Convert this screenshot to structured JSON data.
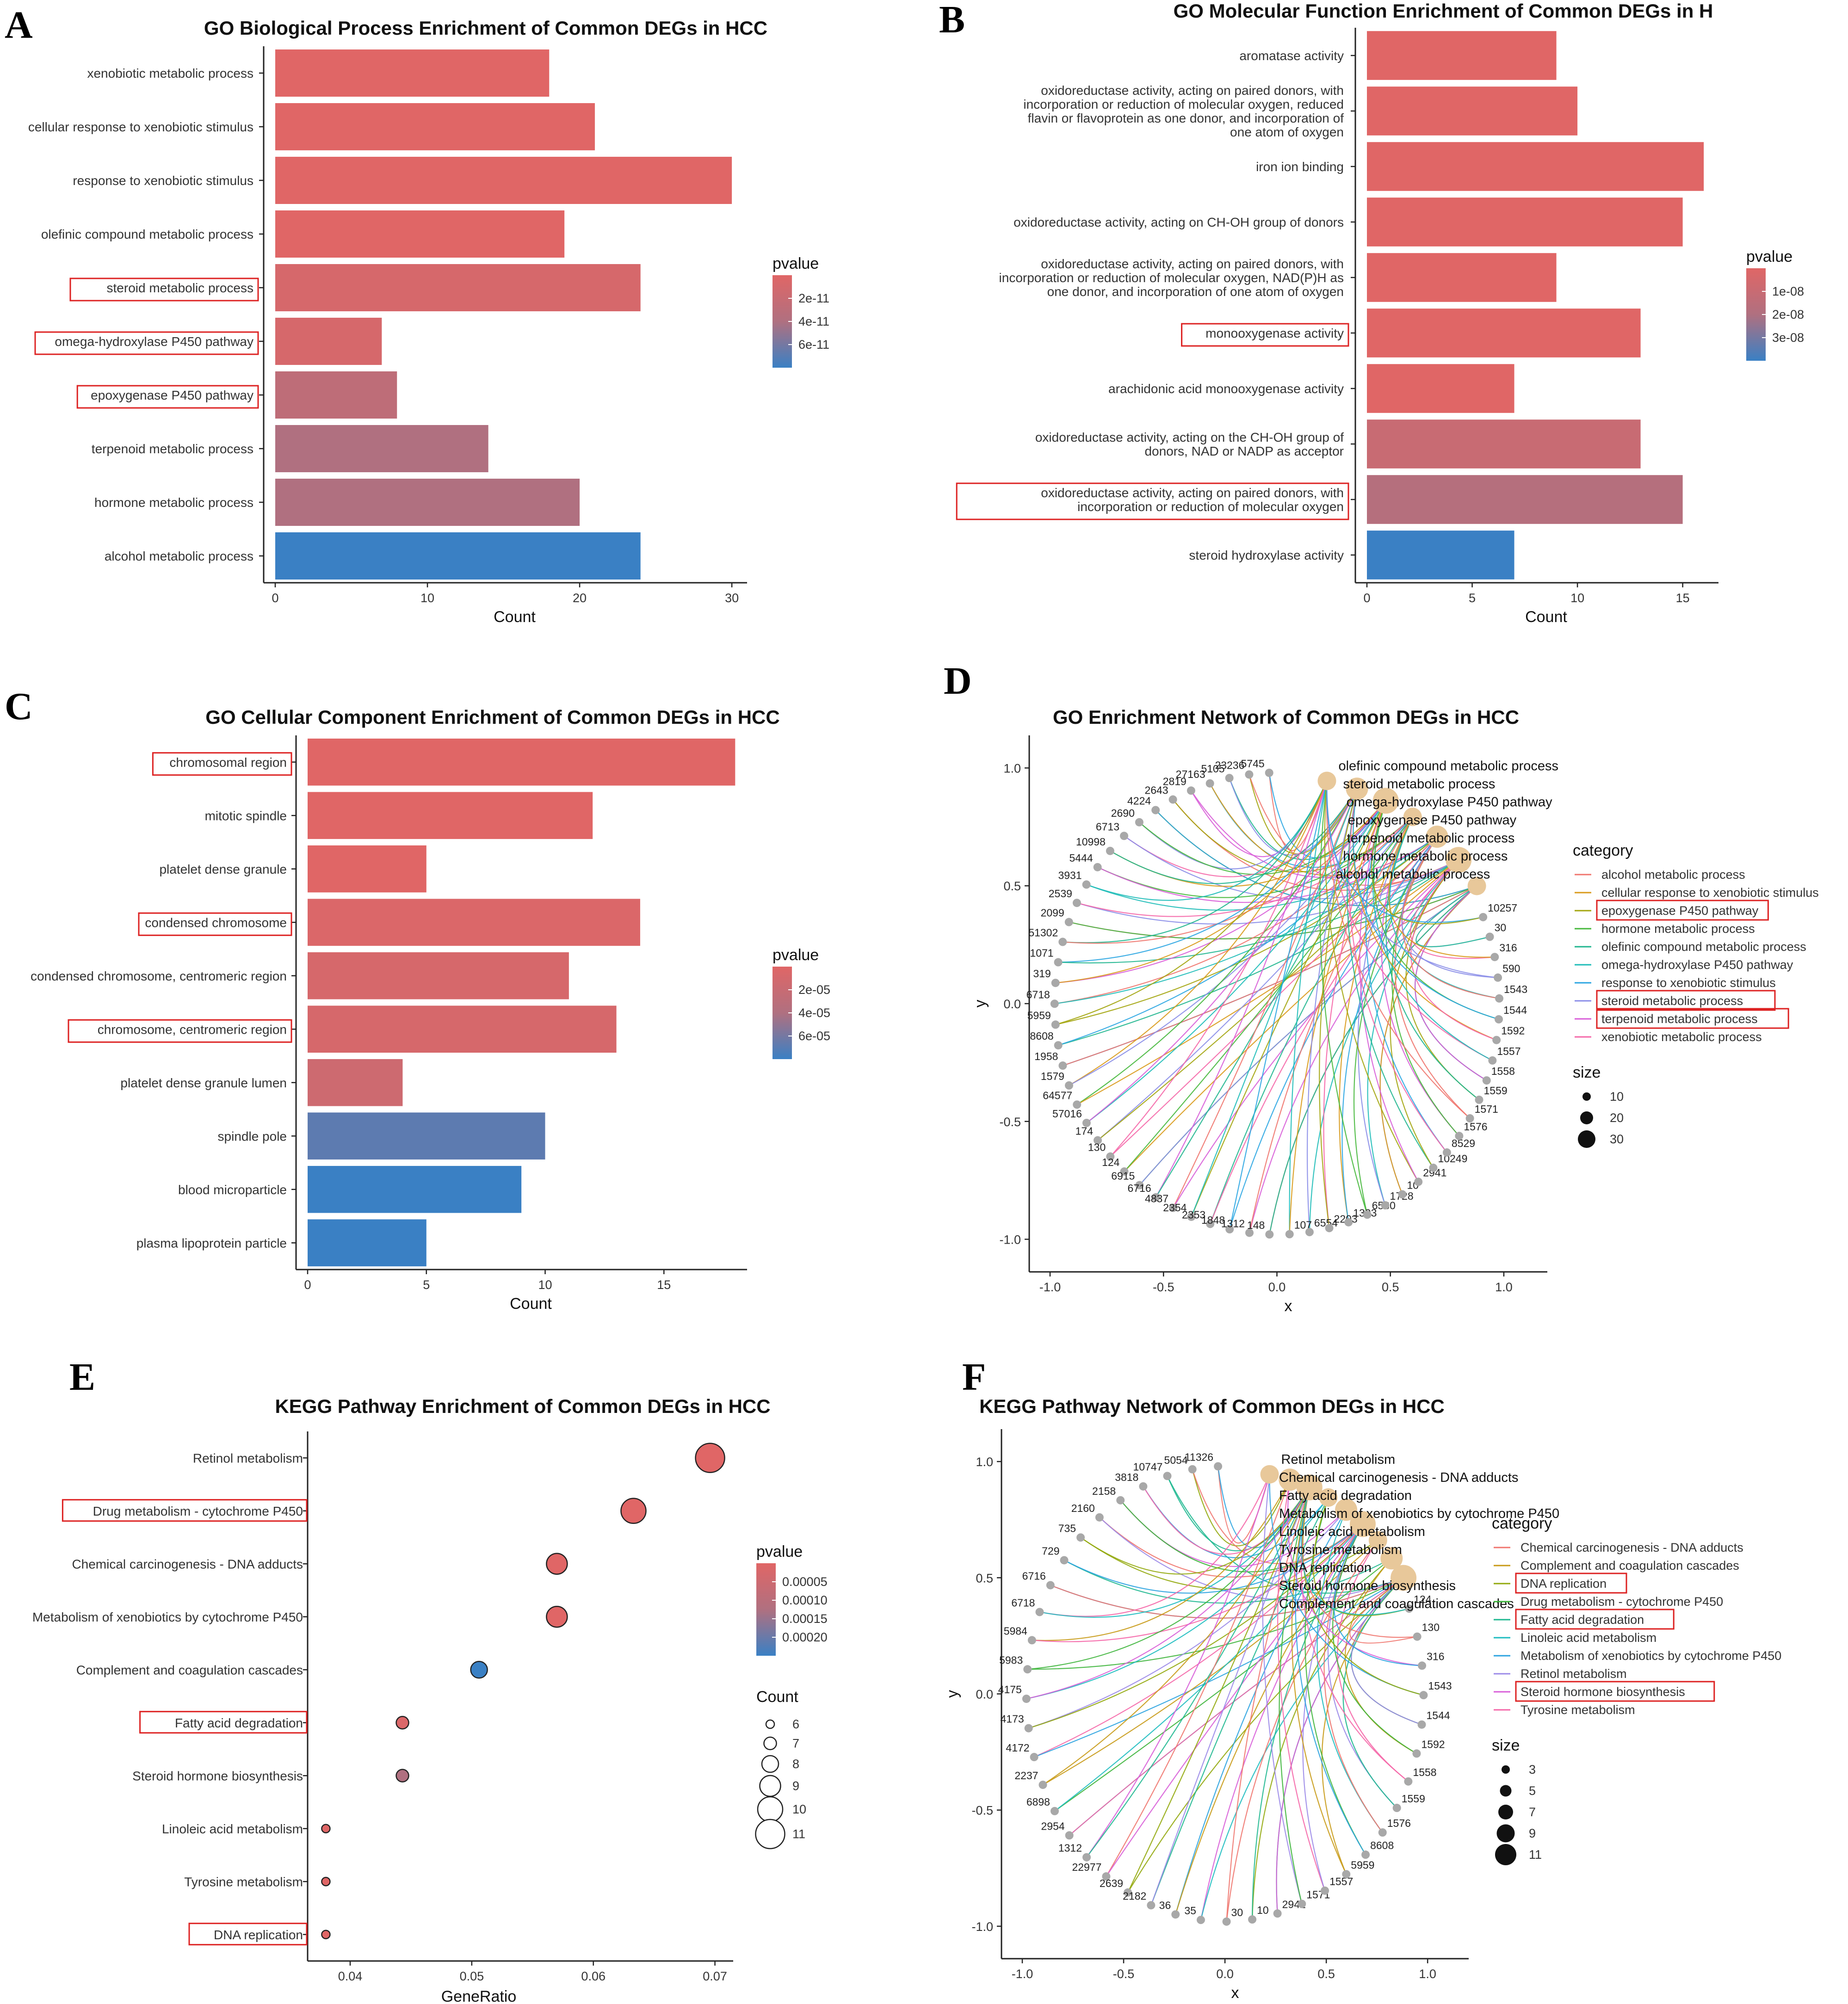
{
  "colors": {
    "red": "#e06666",
    "mid": "#b07080",
    "blue": "#3a80c4",
    "highlight": "#dd2222",
    "node": "#a8a8a8",
    "catNode": "#e8c89a"
  },
  "panels": [
    {
      "id": "A",
      "label": "A",
      "kind": "bar",
      "title": "GO Biological Process Enrichment of Common DEGs in HCC",
      "xlabel": "Count",
      "xticks": [
        0,
        10,
        20,
        30
      ],
      "xlim": [
        0,
        31
      ],
      "categories": [
        "xenobiotic metabolic process",
        "cellular response to xenobiotic stimulus",
        "response to xenobiotic stimulus",
        "olefinic compound metabolic process",
        "steroid metabolic process",
        "omega-hydroxylase P450 pathway",
        "epoxygenase P450 pathway",
        "terpenoid metabolic process",
        "hormone metabolic process",
        "alcohol metabolic process"
      ],
      "values": [
        18,
        21,
        30,
        19,
        24,
        7,
        8,
        14,
        20,
        24
      ],
      "color_t": [
        0.0,
        0.0,
        0.0,
        0.0,
        0.1,
        0.1,
        0.35,
        0.5,
        0.5,
        1.0
      ],
      "highlight": [
        4,
        5,
        6
      ],
      "legend": {
        "title": "pvalue",
        "labels": [
          "2e-11",
          "4e-11",
          "6e-11"
        ]
      }
    },
    {
      "id": "B",
      "label": "B",
      "kind": "bar",
      "title": "GO Molecular Function Enrichment of Common DEGs in H",
      "xlabel": "Count",
      "xticks": [
        0,
        5,
        10,
        15
      ],
      "xlim": [
        0,
        16.7
      ],
      "categories": [
        [
          "aromatase activity"
        ],
        [
          "oxidoreductase activity, acting on paired donors, with",
          "incorporation or reduction of molecular oxygen, reduced",
          "flavin or flavoprotein as one donor, and incorporation of",
          "one atom of oxygen"
        ],
        [
          "iron ion binding"
        ],
        [
          "oxidoreductase activity, acting on CH-OH group of donors"
        ],
        [
          "oxidoreductase activity, acting on paired donors, with",
          "incorporation or reduction of molecular oxygen, NAD(P)H as",
          "one donor, and incorporation of one atom of oxygen"
        ],
        [
          "monooxygenase activity"
        ],
        [
          "arachidonic acid monooxygenase activity"
        ],
        [
          "oxidoreductase activity, acting on the CH-OH group of",
          "donors, NAD or NADP as acceptor"
        ],
        [
          "oxidoreductase activity, acting on paired donors, with",
          "incorporation or reduction of molecular oxygen"
        ],
        [
          "steroid hydroxylase activity"
        ]
      ],
      "values": [
        9,
        10,
        16,
        15,
        9,
        13,
        7,
        13,
        15,
        7
      ],
      "color_t": [
        0.0,
        0.0,
        0.0,
        0.0,
        0.0,
        0.0,
        0.0,
        0.25,
        0.45,
        1.0
      ],
      "highlight": [
        5,
        8
      ],
      "legend": {
        "title": "pvalue",
        "labels": [
          "1e-08",
          "2e-08",
          "3e-08"
        ]
      }
    },
    {
      "id": "C",
      "label": "C",
      "kind": "bar",
      "title": "GO Cellular Component Enrichment of Common DEGs in HCC",
      "xlabel": "Count",
      "xticks": [
        0,
        5,
        10,
        15
      ],
      "xlim": [
        0,
        18.5
      ],
      "categories": [
        "chromosomal region",
        "mitotic spindle",
        "platelet dense granule",
        "condensed chromosome",
        "condensed chromosome, centromeric region",
        "chromosome, centromeric region",
        "platelet dense granule lumen",
        "spindle pole",
        "blood microparticle",
        "plasma lipoprotein particle"
      ],
      "values": [
        18,
        12,
        5,
        14,
        11,
        13,
        4,
        10,
        9,
        5
      ],
      "color_t": [
        0.0,
        0.0,
        0.0,
        0.05,
        0.1,
        0.1,
        0.2,
        0.85,
        1.0,
        1.0
      ],
      "highlight": [
        0,
        3,
        5
      ],
      "legend": {
        "title": "pvalue",
        "labels": [
          "2e-05",
          "4e-05",
          "6e-05"
        ]
      }
    },
    {
      "id": "D",
      "label": "D",
      "kind": "network",
      "title": "GO Enrichment Network of Common DEGs in HCC",
      "xlabel": "x",
      "ylabel": "y",
      "xticks": [
        "-1.0",
        "-0.5",
        "0.0",
        "0.5",
        "1.0"
      ],
      "yticks": [
        "1.0",
        "0.5",
        "0.0",
        "-0.5",
        "-1.0"
      ],
      "category_nodes": [
        "olefinic compound metabolic process",
        "steroid metabolic process",
        "omega-hydroxylase P450 pathway",
        "epoxygenase P450 pathway",
        "terpenoid metabolic process",
        "hormone metabolic process",
        "alcohol metabolic process"
      ],
      "gene_nodes": [
        "5745",
        "23236",
        "5105",
        "27163",
        "2819",
        "2643",
        "4224",
        "2690",
        "6713",
        "10998",
        "5444",
        "3931",
        "2539",
        "2099",
        "51302",
        "1071",
        "319",
        "6718",
        "5959",
        "8608",
        "1958",
        "1579",
        "64577",
        "57016",
        "174",
        "130",
        "124",
        "6915",
        "6716",
        "4837",
        "2354",
        "2353",
        "1848",
        "1312",
        "148",
        "107",
        "6554",
        "2203",
        "1393",
        "6580",
        "1728",
        "10",
        "2941",
        "10249",
        "8529",
        "1576",
        "1571",
        "1559",
        "1558",
        "1557",
        "1592",
        "1544",
        "1543",
        "590",
        "316",
        "30",
        "10257"
      ],
      "legend_title": "category",
      "legend": [
        {
          "label": "alcohol metabolic process",
          "color": "#f0756e"
        },
        {
          "label": "cellular response to xenobiotic stimulus",
          "color": "#d99a1a"
        },
        {
          "label": "epoxygenase P450 pathway",
          "color": "#a3a50e"
        },
        {
          "label": "hormone metabolic process",
          "color": "#46b83c"
        },
        {
          "label": "olefinic compound metabolic process",
          "color": "#20b68f"
        },
        {
          "label": "omega-hydroxylase P450 pathway",
          "color": "#1ebcb8"
        },
        {
          "label": "response to xenobiotic stimulus",
          "color": "#2ba6e2"
        },
        {
          "label": "steroid metabolic process",
          "color": "#8a8de8"
        },
        {
          "label": "terpenoid metabolic process",
          "color": "#d85ed8"
        },
        {
          "label": "xenobiotic metabolic process",
          "color": "#f567a8"
        }
      ],
      "highlight": [
        2,
        7,
        8
      ],
      "size_title": "size",
      "sizes": [
        "10",
        "20",
        "30"
      ]
    },
    {
      "id": "E",
      "label": "E",
      "kind": "dot",
      "title": "KEGG Pathway Enrichment of Common DEGs in HCC",
      "xlabel": "GeneRatio",
      "xticks": [
        "0.04",
        "0.05",
        "0.06",
        "0.07"
      ],
      "xtick_values": [
        0.04,
        0.05,
        0.06,
        0.07
      ],
      "xlim": [
        0.0365,
        0.0715
      ],
      "categories": [
        "Retinol metabolism",
        "Drug metabolism - cytochrome P450",
        "Chemical carcinogenesis - DNA adducts",
        "Metabolism of xenobiotics by cytochrome P450",
        "Complement and coagulation cascades",
        "Fatty acid degradation",
        "Steroid hormone biosynthesis",
        "Linoleic acid metabolism",
        "Tyrosine metabolism",
        "DNA replication"
      ],
      "generatio": [
        0.0696,
        0.0633,
        0.057,
        0.057,
        0.0506,
        0.0443,
        0.0443,
        0.038,
        0.038,
        0.038
      ],
      "counts": [
        11,
        10,
        9,
        9,
        8,
        7,
        7,
        6,
        6,
        6
      ],
      "color_t": [
        0.0,
        0.0,
        0.0,
        0.0,
        1.0,
        0.05,
        0.5,
        0.0,
        0.0,
        0.0
      ],
      "highlight": [
        1,
        5,
        9
      ],
      "legend": {
        "title": "pvalue",
        "labels": [
          "0.00005",
          "0.00010",
          "0.00015",
          "0.00020"
        ]
      },
      "count_title": "Count",
      "count_legend": [
        "6",
        "7",
        "8",
        "9",
        "10",
        "11"
      ]
    },
    {
      "id": "F",
      "label": "F",
      "kind": "network",
      "title": "KEGG Pathway Network of Common DEGs in HCC",
      "xlabel": "x",
      "ylabel": "y",
      "xticks": [
        "-1.0",
        "-0.5",
        "0.0",
        "0.5",
        "1.0"
      ],
      "yticks": [
        "1.0",
        "0.5",
        "0.0",
        "-0.5",
        "-1.0"
      ],
      "category_nodes": [
        "Retinol metabolism",
        "Chemical carcinogenesis - DNA adducts",
        "Fatty acid degradation",
        "Metabolism of xenobiotics by cytochrome P450",
        "Linoleic acid metabolism",
        "Tyrosine metabolism",
        "DNA replication",
        "Steroid hormone biosynthesis",
        "Complement and coagulation cascades"
      ],
      "gene_nodes": [
        "11326",
        "5054",
        "10747",
        "3818",
        "2158",
        "2160",
        "735",
        "729",
        "6716",
        "6718",
        "5984",
        "5983",
        "4175",
        "4173",
        "4172",
        "2237",
        "6898",
        "2954",
        "1312",
        "22977",
        "2639",
        "2182",
        "36",
        "35",
        "30",
        "10",
        "2941",
        "1571",
        "1557",
        "5959",
        "8608",
        "1576",
        "1559",
        "1558",
        "1592",
        "1544",
        "1543",
        "316",
        "130",
        "124"
      ],
      "legend_title": "category",
      "legend": [
        {
          "label": "Chemical carcinogenesis - DNA adducts",
          "color": "#f0756e"
        },
        {
          "label": "Complement and coagulation cascades",
          "color": "#c89a16"
        },
        {
          "label": "DNA replication",
          "color": "#92a80c"
        },
        {
          "label": "Drug metabolism - cytochrome P450",
          "color": "#3eb53c"
        },
        {
          "label": "Fatty acid degradation",
          "color": "#1fb890"
        },
        {
          "label": "Linoleic acid metabolism",
          "color": "#1ebcc0"
        },
        {
          "label": "Metabolism of xenobiotics by cytochrome P450",
          "color": "#2ba3e0"
        },
        {
          "label": "Retinol metabolism",
          "color": "#9b8ae8"
        },
        {
          "label": "Steroid hormone biosynthesis",
          "color": "#d85ed8"
        },
        {
          "label": "Tyrosine metabolism",
          "color": "#f567a8"
        }
      ],
      "highlight": [
        2,
        4,
        8
      ],
      "size_title": "size",
      "sizes": [
        "3",
        "5",
        "7",
        "9",
        "11"
      ]
    }
  ]
}
